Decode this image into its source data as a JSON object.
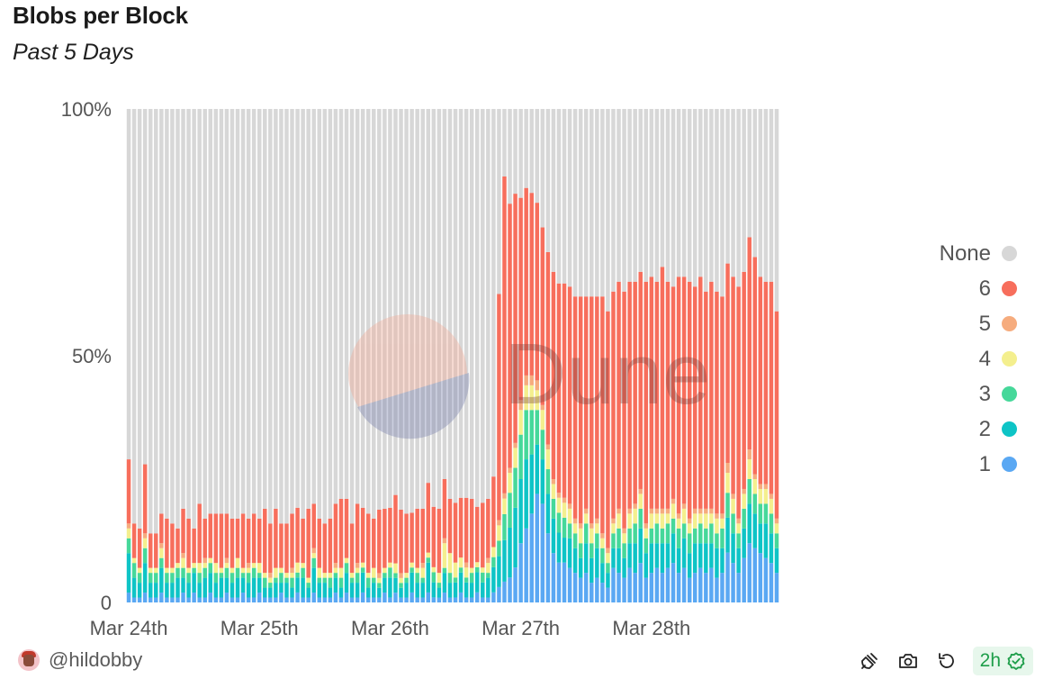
{
  "header": {
    "title": "Blobs per Block",
    "subtitle": "Past 5 Days"
  },
  "author": {
    "handle": "@hildobby"
  },
  "footer": {
    "refresh_badge": "2h",
    "icons": [
      "embed-icon",
      "camera-icon",
      "refresh-icon",
      "check-circle-icon"
    ]
  },
  "watermark": "Dune",
  "colors": {
    "None": "#d7d7d7",
    "6": "#f76e5c",
    "5": "#f6ac7e",
    "4": "#f4ef8e",
    "3": "#46d89a",
    "2": "#0ec4c6",
    "1": "#5aa8f3"
  },
  "chart_data": {
    "type": "bar",
    "stacked": true,
    "normalized": true,
    "title": "Blobs per Block",
    "subtitle": "Past 5 Days",
    "x_ticks": [
      "Mar 24th",
      "Mar 25th",
      "Mar 26th",
      "Mar 27th",
      "Mar 28th"
    ],
    "x_tick_index": [
      0,
      24,
      48,
      72,
      96
    ],
    "y_ticks": [
      "0",
      "50%",
      "100%"
    ],
    "ylim": [
      0,
      1
    ],
    "legend": [
      "None",
      "6",
      "5",
      "4",
      "3",
      "2",
      "1"
    ],
    "series_order": [
      "1",
      "2",
      "3",
      "4",
      "5",
      "6",
      "None"
    ],
    "n_bars": 120,
    "share_1": [
      0.02,
      0.01,
      0.01,
      0.02,
      0.01,
      0.01,
      0.02,
      0.01,
      0.01,
      0.01,
      0.02,
      0.01,
      0.02,
      0.01,
      0.01,
      0.02,
      0.01,
      0.01,
      0.02,
      0.01,
      0.01,
      0.02,
      0.01,
      0.01,
      0.02,
      0.01,
      0.01,
      0.01,
      0.02,
      0.01,
      0.01,
      0.02,
      0.01,
      0.01,
      0.02,
      0.01,
      0.01,
      0.01,
      0.02,
      0.01,
      0.02,
      0.01,
      0.01,
      0.02,
      0.01,
      0.01,
      0.01,
      0.02,
      0.01,
      0.02,
      0.01,
      0.01,
      0.02,
      0.01,
      0.01,
      0.02,
      0.01,
      0.01,
      0.02,
      0.01,
      0.01,
      0.02,
      0.01,
      0.01,
      0.02,
      0.01,
      0.01,
      0.02,
      0.03,
      0.04,
      0.05,
      0.07,
      0.12,
      0.15,
      0.18,
      0.22,
      0.2,
      0.14,
      0.1,
      0.08,
      0.08,
      0.07,
      0.06,
      0.05,
      0.06,
      0.04,
      0.05,
      0.04,
      0.03,
      0.07,
      0.06,
      0.05,
      0.07,
      0.06,
      0.08,
      0.05,
      0.06,
      0.07,
      0.06,
      0.07,
      0.08,
      0.06,
      0.07,
      0.05,
      0.06,
      0.07,
      0.06,
      0.07,
      0.05,
      0.06,
      0.1,
      0.08,
      0.06,
      0.09,
      0.12,
      0.11,
      0.1,
      0.09,
      0.08,
      0.06
    ],
    "share_2": [
      0.08,
      0.04,
      0.03,
      0.06,
      0.03,
      0.03,
      0.05,
      0.03,
      0.03,
      0.04,
      0.03,
      0.03,
      0.04,
      0.03,
      0.04,
      0.04,
      0.03,
      0.04,
      0.03,
      0.03,
      0.04,
      0.03,
      0.03,
      0.04,
      0.03,
      0.02,
      0.02,
      0.03,
      0.02,
      0.03,
      0.02,
      0.03,
      0.04,
      0.02,
      0.05,
      0.03,
      0.03,
      0.02,
      0.03,
      0.02,
      0.04,
      0.03,
      0.03,
      0.04,
      0.02,
      0.03,
      0.02,
      0.03,
      0.04,
      0.03,
      0.02,
      0.03,
      0.04,
      0.03,
      0.03,
      0.06,
      0.03,
      0.02,
      0.04,
      0.03,
      0.03,
      0.04,
      0.03,
      0.03,
      0.04,
      0.03,
      0.04,
      0.05,
      0.06,
      0.08,
      0.1,
      0.12,
      0.13,
      0.14,
      0.12,
      0.1,
      0.09,
      0.08,
      0.07,
      0.06,
      0.05,
      0.06,
      0.05,
      0.04,
      0.06,
      0.05,
      0.06,
      0.04,
      0.03,
      0.04,
      0.05,
      0.04,
      0.05,
      0.06,
      0.07,
      0.05,
      0.06,
      0.05,
      0.06,
      0.05,
      0.06,
      0.05,
      0.06,
      0.05,
      0.06,
      0.05,
      0.06,
      0.05,
      0.06,
      0.05,
      0.07,
      0.06,
      0.05,
      0.06,
      0.08,
      0.07,
      0.06,
      0.07,
      0.06,
      0.05
    ],
    "share_3": [
      0.03,
      0.03,
      0.02,
      0.03,
      0.02,
      0.02,
      0.02,
      0.02,
      0.02,
      0.02,
      0.02,
      0.02,
      0.01,
      0.02,
      0.02,
      0.02,
      0.02,
      0.01,
      0.02,
      0.02,
      0.02,
      0.01,
      0.02,
      0.02,
      0.01,
      0.02,
      0.01,
      0.01,
      0.02,
      0.01,
      0.02,
      0.01,
      0.02,
      0.01,
      0.02,
      0.01,
      0.01,
      0.02,
      0.01,
      0.02,
      0.02,
      0.01,
      0.02,
      0.01,
      0.02,
      0.01,
      0.01,
      0.01,
      0.02,
      0.01,
      0.01,
      0.01,
      0.01,
      0.02,
      0.01,
      0.01,
      0.02,
      0.01,
      0.01,
      0.02,
      0.01,
      0.01,
      0.01,
      0.02,
      0.01,
      0.02,
      0.01,
      0.02,
      0.03,
      0.05,
      0.07,
      0.08,
      0.09,
      0.1,
      0.09,
      0.07,
      0.06,
      0.05,
      0.04,
      0.04,
      0.04,
      0.03,
      0.03,
      0.03,
      0.04,
      0.03,
      0.03,
      0.03,
      0.02,
      0.03,
      0.04,
      0.03,
      0.03,
      0.04,
      0.04,
      0.03,
      0.03,
      0.04,
      0.03,
      0.04,
      0.03,
      0.04,
      0.03,
      0.04,
      0.03,
      0.04,
      0.03,
      0.04,
      0.03,
      0.04,
      0.05,
      0.04,
      0.03,
      0.04,
      0.05,
      0.04,
      0.04,
      0.04,
      0.04,
      0.03
    ],
    "share_4": [
      0.02,
      0.01,
      0.01,
      0.02,
      0.01,
      0.01,
      0.02,
      0.01,
      0.01,
      0.01,
      0.02,
      0.01,
      0.01,
      0.02,
      0.01,
      0.01,
      0.02,
      0.01,
      0.01,
      0.01,
      0.02,
      0.01,
      0.01,
      0.01,
      0.02,
      0.01,
      0.01,
      0.02,
      0.01,
      0.01,
      0.01,
      0.02,
      0.01,
      0.01,
      0.01,
      0.02,
      0.01,
      0.01,
      0.01,
      0.02,
      0.01,
      0.01,
      0.01,
      0.01,
      0.01,
      0.02,
      0.01,
      0.01,
      0.01,
      0.02,
      0.01,
      0.01,
      0.01,
      0.01,
      0.02,
      0.01,
      0.01,
      0.02,
      0.05,
      0.04,
      0.03,
      0.02,
      0.02,
      0.01,
      0.01,
      0.01,
      0.02,
      0.02,
      0.03,
      0.03,
      0.04,
      0.04,
      0.05,
      0.05,
      0.05,
      0.04,
      0.04,
      0.04,
      0.03,
      0.03,
      0.03,
      0.03,
      0.02,
      0.03,
      0.02,
      0.03,
      0.02,
      0.02,
      0.02,
      0.02,
      0.03,
      0.02,
      0.03,
      0.03,
      0.03,
      0.02,
      0.03,
      0.02,
      0.03,
      0.02,
      0.03,
      0.02,
      0.03,
      0.02,
      0.03,
      0.02,
      0.03,
      0.02,
      0.03,
      0.02,
      0.04,
      0.03,
      0.02,
      0.03,
      0.04,
      0.03,
      0.03,
      0.03,
      0.03,
      0.02
    ],
    "share_5": [
      0.01,
      0.0,
      0.0,
      0.01,
      0.0,
      0.0,
      0.01,
      0.0,
      0.0,
      0.0,
      0.01,
      0.0,
      0.0,
      0.0,
      0.01,
      0.0,
      0.0,
      0.0,
      0.01,
      0.0,
      0.0,
      0.0,
      0.01,
      0.0,
      0.0,
      0.0,
      0.01,
      0.0,
      0.0,
      0.0,
      0.01,
      0.0,
      0.0,
      0.0,
      0.01,
      0.0,
      0.0,
      0.0,
      0.01,
      0.0,
      0.0,
      0.0,
      0.01,
      0.0,
      0.0,
      0.0,
      0.01,
      0.0,
      0.0,
      0.0,
      0.01,
      0.0,
      0.0,
      0.0,
      0.01,
      0.0,
      0.0,
      0.0,
      0.01,
      0.0,
      0.0,
      0.0,
      0.01,
      0.0,
      0.0,
      0.0,
      0.01,
      0.0,
      0.01,
      0.01,
      0.01,
      0.01,
      0.02,
      0.02,
      0.02,
      0.02,
      0.01,
      0.01,
      0.01,
      0.01,
      0.01,
      0.01,
      0.01,
      0.01,
      0.01,
      0.01,
      0.01,
      0.01,
      0.01,
      0.01,
      0.01,
      0.01,
      0.01,
      0.01,
      0.01,
      0.01,
      0.01,
      0.01,
      0.01,
      0.01,
      0.01,
      0.01,
      0.01,
      0.01,
      0.01,
      0.01,
      0.01,
      0.01,
      0.01,
      0.01,
      0.02,
      0.01,
      0.01,
      0.01,
      0.02,
      0.01,
      0.01,
      0.01,
      0.01,
      0.01
    ],
    "share_6": [
      0.13,
      0.07,
      0.08,
      0.14,
      0.07,
      0.07,
      0.06,
      0.1,
      0.09,
      0.07,
      0.09,
      0.1,
      0.07,
      0.12,
      0.08,
      0.09,
      0.1,
      0.11,
      0.09,
      0.1,
      0.08,
      0.11,
      0.09,
      0.1,
      0.09,
      0.13,
      0.1,
      0.12,
      0.09,
      0.1,
      0.11,
      0.11,
      0.09,
      0.14,
      0.09,
      0.1,
      0.1,
      0.11,
      0.12,
      0.14,
      0.12,
      0.1,
      0.12,
      0.11,
      0.12,
      0.1,
      0.13,
      0.12,
      0.11,
      0.14,
      0.13,
      0.12,
      0.1,
      0.12,
      0.11,
      0.14,
      0.12,
      0.13,
      0.12,
      0.11,
      0.12,
      0.12,
      0.13,
      0.14,
      0.11,
      0.13,
      0.12,
      0.14,
      0.44,
      0.61,
      0.53,
      0.5,
      0.41,
      0.38,
      0.37,
      0.36,
      0.36,
      0.39,
      0.42,
      0.42,
      0.43,
      0.44,
      0.45,
      0.46,
      0.43,
      0.46,
      0.45,
      0.48,
      0.48,
      0.46,
      0.46,
      0.48,
      0.46,
      0.45,
      0.44,
      0.49,
      0.47,
      0.46,
      0.49,
      0.46,
      0.43,
      0.48,
      0.46,
      0.48,
      0.45,
      0.47,
      0.44,
      0.46,
      0.45,
      0.44,
      0.4,
      0.44,
      0.47,
      0.44,
      0.43,
      0.44,
      0.42,
      0.41,
      0.43,
      0.42
    ],
    "share_none": [
      0.71,
      0.84,
      0.85,
      0.72,
      0.86,
      0.86,
      0.82,
      0.83,
      0.84,
      0.85,
      0.81,
      0.83,
      0.85,
      0.8,
      0.83,
      0.82,
      0.82,
      0.82,
      0.82,
      0.83,
      0.83,
      0.82,
      0.83,
      0.82,
      0.83,
      0.81,
      0.84,
      0.81,
      0.84,
      0.84,
      0.82,
      0.8,
      0.83,
      0.81,
      0.8,
      0.83,
      0.84,
      0.83,
      0.8,
      0.79,
      0.79,
      0.84,
      0.8,
      0.8,
      0.82,
      0.83,
      0.82,
      0.81,
      0.8,
      0.79,
      0.82,
      0.82,
      0.81,
      0.81,
      0.81,
      0.75,
      0.79,
      0.81,
      0.75,
      0.79,
      0.79,
      0.78,
      0.78,
      0.79,
      0.79,
      0.79,
      0.79,
      0.73,
      0.36,
      0.13,
      0.19,
      0.17,
      0.18,
      0.16,
      0.17,
      0.19,
      0.24,
      0.29,
      0.33,
      0.35,
      0.35,
      0.36,
      0.38,
      0.38,
      0.38,
      0.38,
      0.38,
      0.38,
      0.41,
      0.37,
      0.35,
      0.37,
      0.35,
      0.35,
      0.33,
      0.35,
      0.34,
      0.35,
      0.32,
      0.35,
      0.36,
      0.34,
      0.34,
      0.35,
      0.36,
      0.34,
      0.37,
      0.35,
      0.37,
      0.38,
      0.31,
      0.34,
      0.36,
      0.33,
      0.26,
      0.3,
      0.34,
      0.35,
      0.35,
      0.41
    ]
  }
}
